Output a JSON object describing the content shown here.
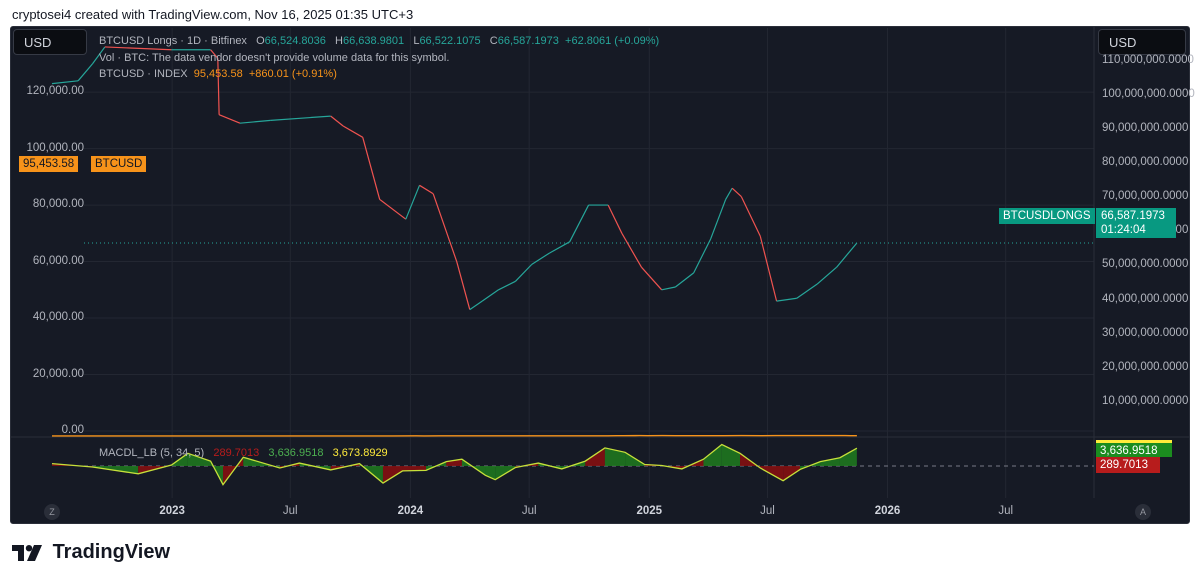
{
  "caption": "cryptosei4 created with TradingView.com, Nov 16, 2025 01:35 UTC+3",
  "currency_left": "USD",
  "currency_right": "USD",
  "legend": {
    "name": "BTCUSD Longs · 1D · Bitfinex",
    "o_label": "O",
    "o": "66,524.8036",
    "h_label": "H",
    "h": "66,638.9801",
    "l_label": "L",
    "l": "66,522.1075",
    "c_label": "C",
    "c": "66,587.1973",
    "change": "+62.8061 (+0.09%)",
    "vol": "Vol · BTC: The data vendor doesn't provide volume data for this symbol.",
    "index_name": "BTCUSD · INDEX",
    "index_value": "95,453.58",
    "index_change": "+860.01 (+0.91%)",
    "macd_name": "MACDL_LB (5, 34, 5)",
    "macd_v1": "289.7013",
    "macd_v2": "3,636.9518",
    "macd_v3": "3,673.8929"
  },
  "tags": {
    "btc_value": "95,453.58",
    "btc_name": "BTCUSD",
    "longs_name": "BTCUSDLONGS",
    "longs_value": "66,587.1973",
    "longs_countdown": "01:24:04",
    "macd_green": "3,636.9518",
    "macd_red": "289.7013"
  },
  "corner_left": "Z",
  "corner_right": "A",
  "brand": "TradingView",
  "colors": {
    "btc": "#f7931a",
    "longs_up": "#26a69a",
    "longs_down": "#ef5350",
    "macd_line": "#c6e03a",
    "hist_pos": "#1e7d1e",
    "hist_neg": "#8b0f0f"
  },
  "chart_data": {
    "type": "line",
    "left_axis": {
      "ticks": [
        "0.00",
        "20,000.00",
        "40,000.00",
        "60,000.00",
        "80,000.00",
        "100,000.00",
        "120,000.00"
      ],
      "range": [
        0,
        125000
      ]
    },
    "right_axis": {
      "ticks": [
        "10,000,000.0000",
        "20,000,000.0000",
        "30,000,000.0000",
        "40,000,000.0000",
        "50,000,000.0000",
        "60,000,000.0000",
        "70,000,000.0000",
        "80,000,000.0000",
        "90,000,000.0000",
        "100,000,000.0000",
        "110,000,000.0000"
      ],
      "range": [
        0,
        112000000
      ]
    },
    "x_axis": {
      "ticks": [
        "2023",
        "Jul",
        "2024",
        "Jul",
        "2025",
        "Jul",
        "2026",
        "Jul"
      ],
      "year_ticks": [
        "2023",
        "2024",
        "2025",
        "2026"
      ],
      "range": [
        "2022-07-01",
        "2026-11-01"
      ]
    },
    "series": [
      {
        "name": "BTCUSD",
        "axis": "right",
        "points": [
          [
            "2022-07-01",
            20000
          ],
          [
            "2022-08-15",
            23500
          ],
          [
            "2022-09-20",
            19500
          ],
          [
            "2022-11-10",
            16500
          ],
          [
            "2022-12-31",
            16600
          ],
          [
            "2023-01-20",
            21000
          ],
          [
            "2023-02-20",
            24500
          ],
          [
            "2023-03-15",
            23000
          ],
          [
            "2023-04-15",
            30000
          ],
          [
            "2023-05-20",
            27000
          ],
          [
            "2023-06-10",
            25800
          ],
          [
            "2023-07-01",
            30500
          ],
          [
            "2023-08-15",
            29000
          ],
          [
            "2023-08-25",
            26000
          ],
          [
            "2023-10-01",
            27000
          ],
          [
            "2023-10-25",
            34500
          ],
          [
            "2023-12-05",
            42000
          ],
          [
            "2024-01-10",
            46500
          ],
          [
            "2024-01-22",
            40000
          ],
          [
            "2024-02-15",
            52000
          ],
          [
            "2024-03-14",
            73000
          ],
          [
            "2024-04-15",
            64000
          ],
          [
            "2024-05-01",
            57000
          ],
          [
            "2024-05-20",
            70000
          ],
          [
            "2024-06-15",
            66000
          ],
          [
            "2024-07-05",
            56000
          ],
          [
            "2024-07-28",
            68500
          ],
          [
            "2024-08-05",
            54000
          ],
          [
            "2024-09-06",
            53500
          ],
          [
            "2024-09-30",
            64000
          ],
          [
            "2024-10-29",
            72000
          ],
          [
            "2024-11-12",
            88000
          ],
          [
            "2024-11-22",
            99000
          ],
          [
            "2024-12-17",
            106000
          ],
          [
            "2024-12-30",
            92500
          ],
          [
            "2025-01-21",
            106000
          ],
          [
            "2025-02-10",
            97000
          ],
          [
            "2025-02-28",
            84000
          ],
          [
            "2025-03-11",
            78000
          ],
          [
            "2025-04-08",
            76000
          ],
          [
            "2025-04-25",
            94000
          ],
          [
            "2025-05-22",
            111000
          ],
          [
            "2025-06-22",
            100000
          ],
          [
            "2025-07-14",
            122000
          ],
          [
            "2025-08-02",
            113000
          ],
          [
            "2025-08-14",
            123000
          ],
          [
            "2025-09-01",
            108000
          ],
          [
            "2025-09-20",
            116000
          ],
          [
            "2025-10-06",
            125000
          ],
          [
            "2025-10-10",
            111000
          ],
          [
            "2025-10-28",
            114000
          ],
          [
            "2025-11-05",
            101000
          ],
          [
            "2025-11-15",
            95453
          ]
        ]
      },
      {
        "name": "BTCUSDLONGS",
        "axis": "left",
        "points": [
          [
            "2022-07-01",
            123000
          ],
          [
            "2022-08-10",
            124000
          ],
          [
            "2022-09-01",
            130000
          ],
          [
            "2022-09-20",
            136000
          ],
          [
            "2022-12-31",
            135000
          ],
          [
            "2023-03-01",
            135000
          ],
          [
            "2023-03-12",
            132000
          ],
          [
            "2023-03-14",
            112000
          ],
          [
            "2023-04-15",
            109000
          ],
          [
            "2023-06-01",
            110000
          ],
          [
            "2023-08-01",
            111000
          ],
          [
            "2023-09-01",
            111500
          ],
          [
            "2023-09-20",
            108000
          ],
          [
            "2023-10-20",
            104000
          ],
          [
            "2023-11-15",
            82000
          ],
          [
            "2023-12-25",
            75000
          ],
          [
            "2024-01-15",
            87000
          ],
          [
            "2024-02-05",
            84000
          ],
          [
            "2024-03-12",
            60000
          ],
          [
            "2024-04-01",
            43000
          ],
          [
            "2024-04-20",
            46000
          ],
          [
            "2024-05-15",
            50000
          ],
          [
            "2024-06-10",
            53000
          ],
          [
            "2024-07-05",
            59000
          ],
          [
            "2024-08-01",
            63000
          ],
          [
            "2024-09-01",
            67000
          ],
          [
            "2024-09-30",
            80000
          ],
          [
            "2024-10-30",
            80000
          ],
          [
            "2024-11-20",
            70000
          ],
          [
            "2024-12-20",
            58000
          ],
          [
            "2025-01-20",
            50000
          ],
          [
            "2025-02-10",
            51000
          ],
          [
            "2025-03-10",
            56000
          ],
          [
            "2025-04-05",
            68000
          ],
          [
            "2025-04-28",
            82000
          ],
          [
            "2025-05-08",
            86000
          ],
          [
            "2025-05-22",
            83000
          ],
          [
            "2025-06-20",
            69000
          ],
          [
            "2025-07-15",
            46000
          ],
          [
            "2025-08-15",
            47000
          ],
          [
            "2025-09-15",
            52000
          ],
          [
            "2025-10-15",
            58000
          ],
          [
            "2025-11-15",
            66587
          ]
        ]
      }
    ],
    "macd": {
      "name": "MACDL_LB (5, 34, 5)",
      "values": [
        "289.7013",
        "3,636.9518",
        "3,673.8929"
      ],
      "line": [
        [
          "2022-07-01",
          500
        ],
        [
          "2022-09-01",
          -200
        ],
        [
          "2022-11-10",
          -1600
        ],
        [
          "2022-12-31",
          200
        ],
        [
          "2023-01-25",
          2600
        ],
        [
          "2023-03-01",
          1000
        ],
        [
          "2023-03-20",
          -3800
        ],
        [
          "2023-04-20",
          1800
        ],
        [
          "2023-06-15",
          -400
        ],
        [
          "2023-07-15",
          600
        ],
        [
          "2023-09-01",
          -800
        ],
        [
          "2023-10-15",
          500
        ],
        [
          "2023-11-20",
          -3500
        ],
        [
          "2023-12-20",
          -1000
        ],
        [
          "2024-01-25",
          -900
        ],
        [
          "2024-02-25",
          900
        ],
        [
          "2024-03-20",
          1400
        ],
        [
          "2024-04-25",
          -1900
        ],
        [
          "2024-05-10",
          -2800
        ],
        [
          "2024-06-10",
          -300
        ],
        [
          "2024-07-15",
          600
        ],
        [
          "2024-08-20",
          -600
        ],
        [
          "2024-09-25",
          1000
        ],
        [
          "2024-10-25",
          3700
        ],
        [
          "2024-11-25",
          2800
        ],
        [
          "2024-12-25",
          300
        ],
        [
          "2025-01-20",
          100
        ],
        [
          "2025-02-20",
          -600
        ],
        [
          "2025-03-25",
          1400
        ],
        [
          "2025-04-22",
          4400
        ],
        [
          "2025-05-20",
          2600
        ],
        [
          "2025-06-20",
          -400
        ],
        [
          "2025-07-25",
          -3000
        ],
        [
          "2025-08-20",
          -700
        ],
        [
          "2025-09-20",
          900
        ],
        [
          "2025-10-20",
          1700
        ],
        [
          "2025-11-15",
          3637
        ]
      ],
      "histogram_sign_changes": [
        [
          "2022-07-01",
          "negative"
        ],
        [
          "2022-08-01",
          "positive"
        ],
        [
          "2022-10-01",
          "negative"
        ],
        [
          "2022-12-15",
          "positive"
        ],
        [
          "2023-03-05",
          "negative"
        ],
        [
          "2023-04-10",
          "positive"
        ],
        [
          "2023-06-01",
          "negative"
        ],
        [
          "2023-07-05",
          "positive"
        ],
        [
          "2023-08-20",
          "negative"
        ],
        [
          "2023-10-01",
          "positive"
        ],
        [
          "2023-11-01",
          "negative"
        ],
        [
          "2024-01-10",
          "positive"
        ],
        [
          "2024-02-05",
          "negative"
        ],
        [
          "2024-03-20",
          "positive"
        ],
        [
          "2024-06-10",
          "negative"
        ],
        [
          "2024-07-10",
          "positive"
        ],
        [
          "2024-09-20",
          "negative"
        ],
        [
          "2024-10-15",
          "positive"
        ],
        [
          "2024-12-20",
          "negative"
        ],
        [
          "2025-03-20",
          "positive"
        ],
        [
          "2025-05-15",
          "negative"
        ],
        [
          "2025-08-05",
          "positive"
        ]
      ]
    }
  }
}
